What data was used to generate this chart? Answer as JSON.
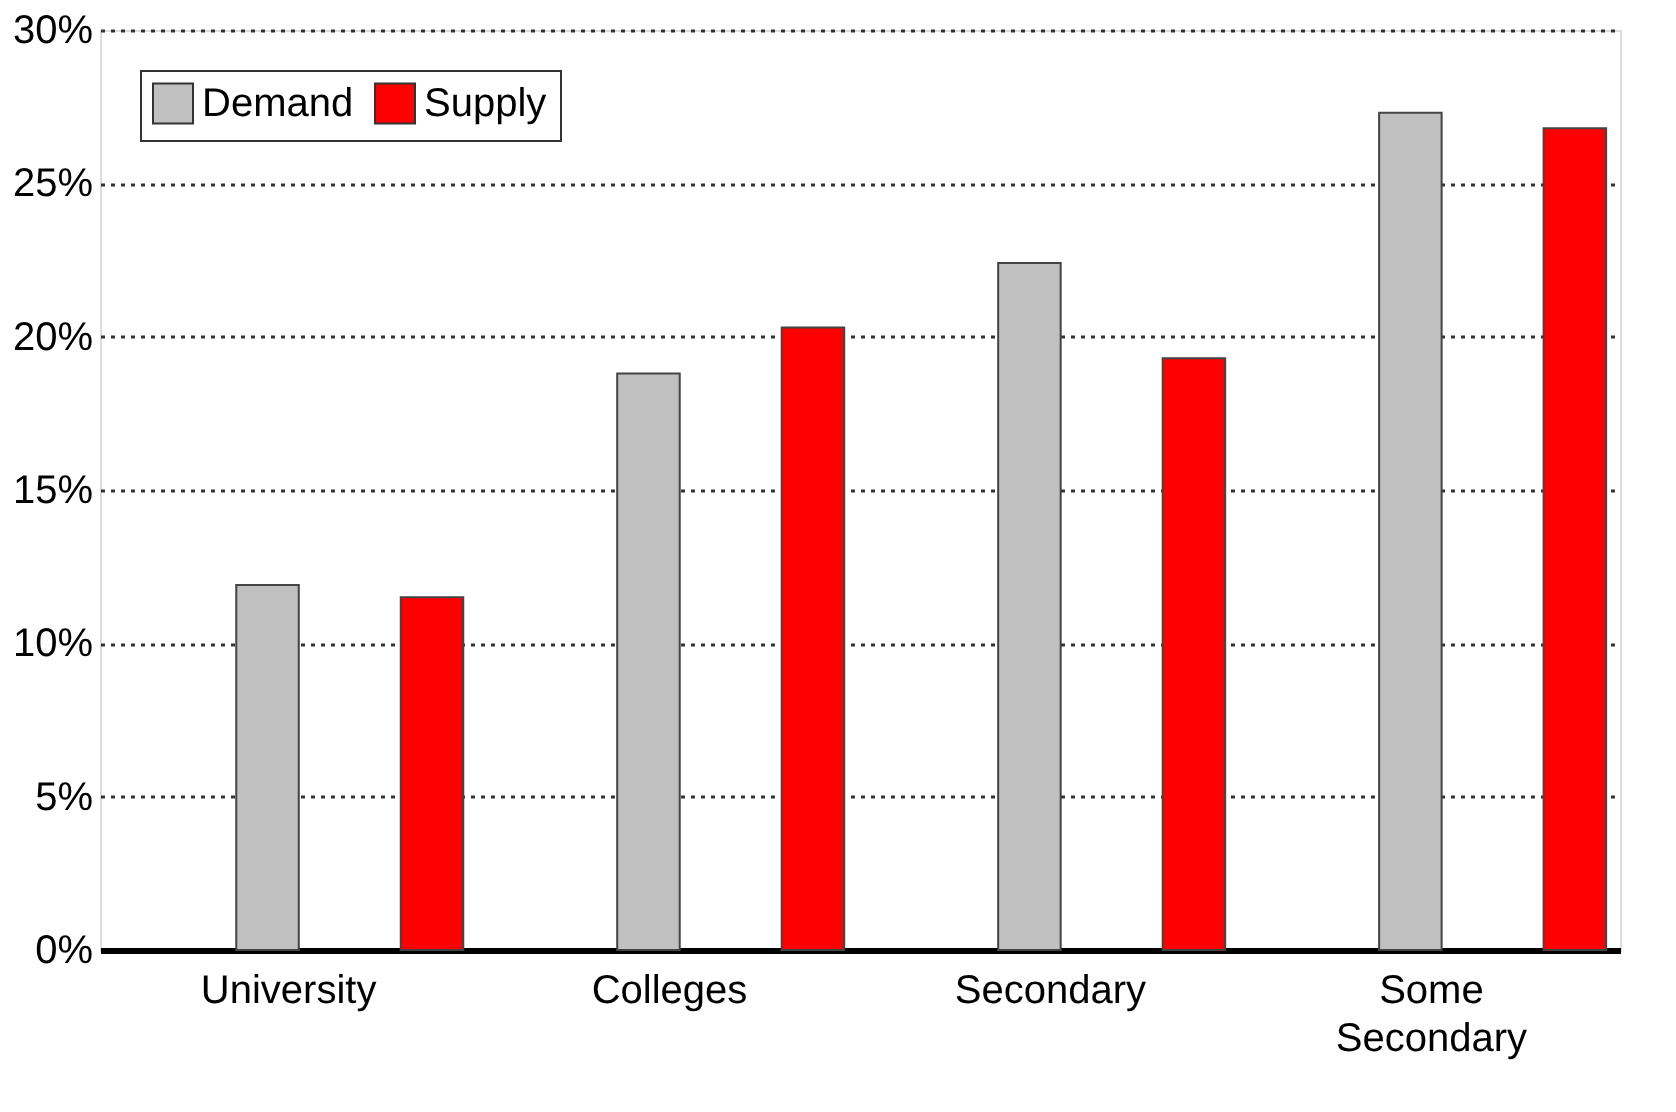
{
  "chart_data": {
    "type": "bar",
    "categories": [
      "University",
      "Colleges",
      "Secondary",
      "Some Secondary"
    ],
    "series": [
      {
        "name": "Demand",
        "color": "#c0c0c0",
        "values": [
          11.9,
          18.8,
          22.4,
          27.3
        ]
      },
      {
        "name": "Supply",
        "color": "#ff0000",
        "values": [
          11.5,
          20.3,
          19.3,
          26.8
        ]
      }
    ],
    "ylim": [
      0,
      30
    ],
    "yticks": [
      {
        "value": 0,
        "label": "0%"
      },
      {
        "value": 5,
        "label": "5%"
      },
      {
        "value": 10,
        "label": "10%"
      },
      {
        "value": 15,
        "label": "15%"
      },
      {
        "value": 20,
        "label": "20%"
      },
      {
        "value": 25,
        "label": "25%"
      },
      {
        "value": 30,
        "label": "30%"
      }
    ],
    "grid": "y",
    "legend": "top left"
  }
}
